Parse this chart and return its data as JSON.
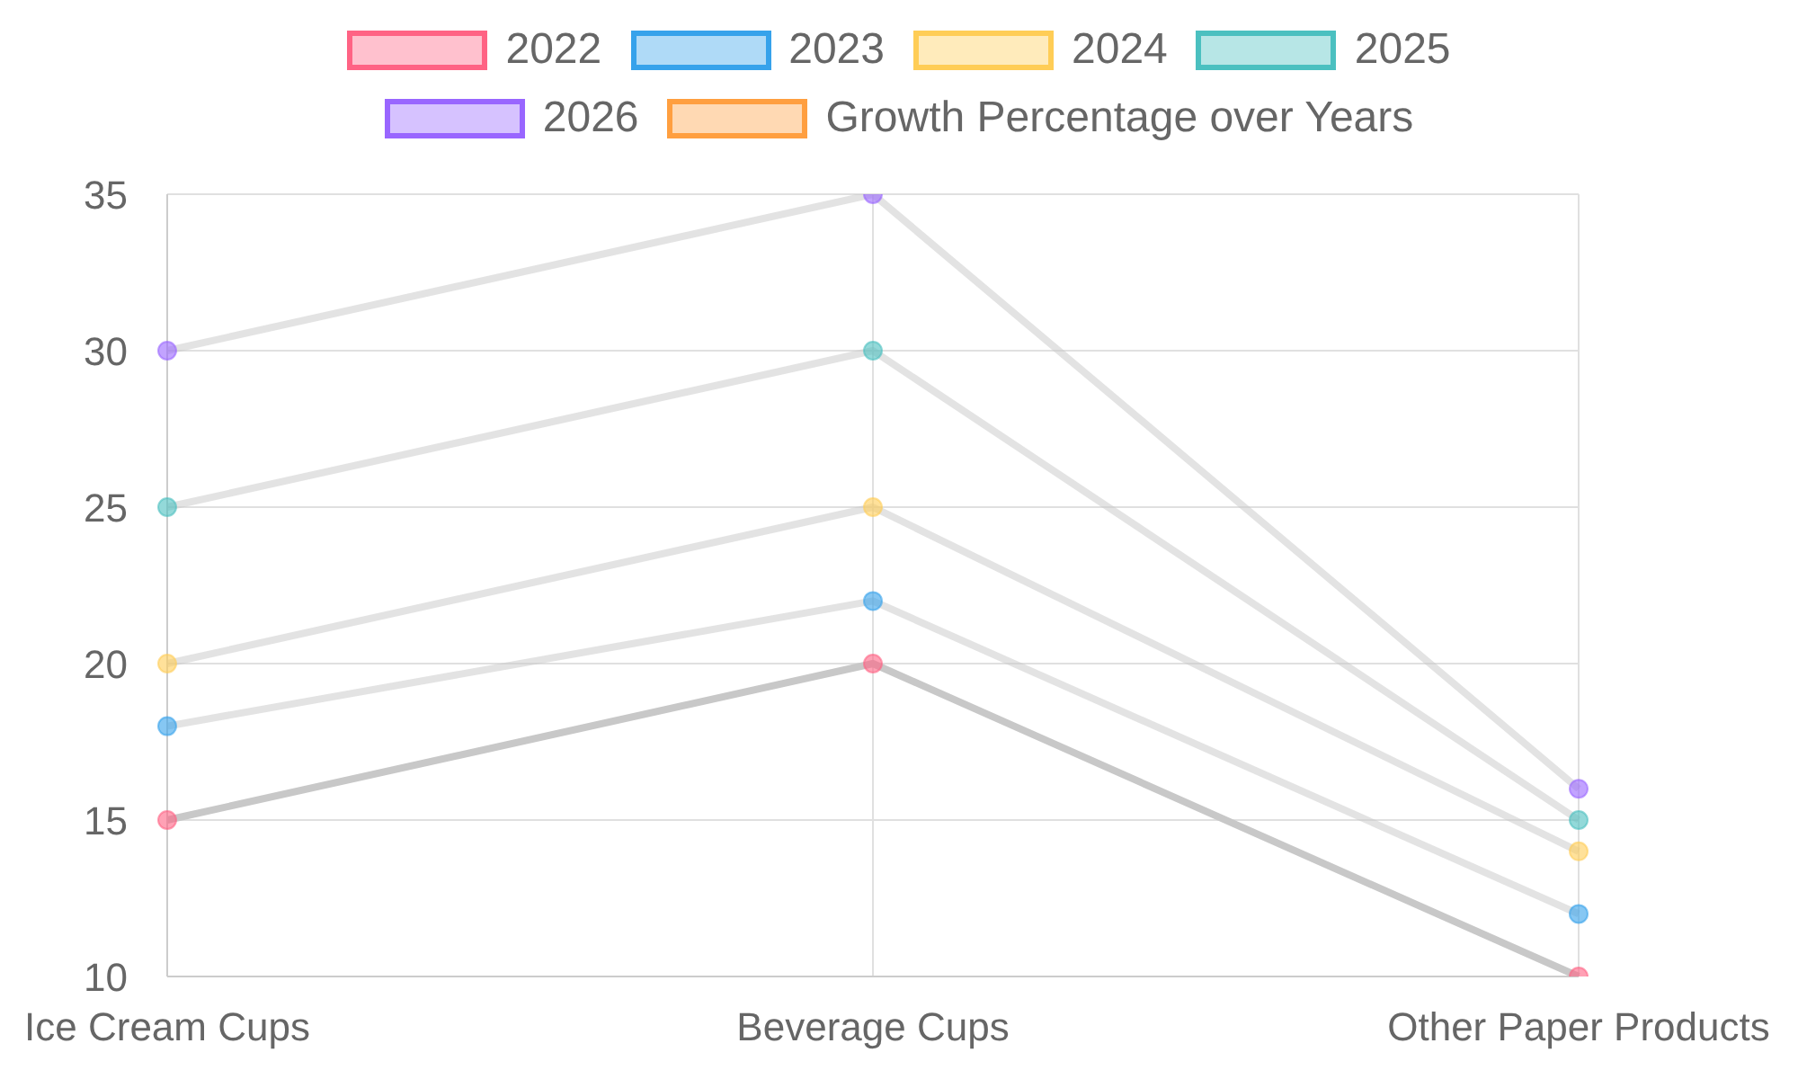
{
  "chart_data": {
    "type": "line",
    "categories": [
      "Ice Cream Cups",
      "Beverage Cups",
      "Other Paper Products"
    ],
    "series": [
      {
        "name": "2022",
        "color": "#ff6384",
        "values": [
          15,
          20,
          10
        ]
      },
      {
        "name": "2023",
        "color": "#36a2eb",
        "values": [
          18,
          22,
          12
        ]
      },
      {
        "name": "2024",
        "color": "#ffcd56",
        "values": [
          20,
          25,
          14
        ]
      },
      {
        "name": "2025",
        "color": "#4bc0c0",
        "values": [
          25,
          30,
          15
        ]
      },
      {
        "name": "2026",
        "color": "#9966ff",
        "values": [
          30,
          35,
          16
        ]
      },
      {
        "name": "Growth Percentage over Years",
        "color": "#ff9f40",
        "values": [
          null,
          null,
          null
        ]
      }
    ],
    "ylim": [
      10,
      35
    ],
    "yticks": [
      10,
      15,
      20,
      25,
      30,
      35
    ],
    "grid": true,
    "legend": "top",
    "marker": "circle",
    "line_style": "solid"
  }
}
